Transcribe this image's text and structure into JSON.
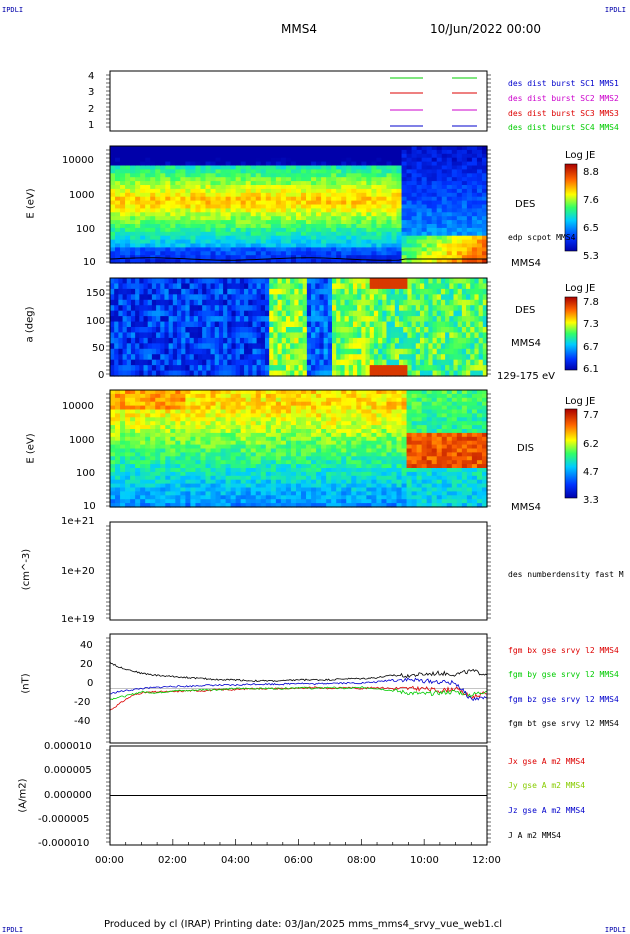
{
  "corners": {
    "tl": "IPDLI",
    "tr": "IPDLI",
    "bl": "IPDLI",
    "br": "IPDLI"
  },
  "header": {
    "spacecraft": "MMS4",
    "date": "10/Jun/2022 00:00"
  },
  "footer": {
    "text": "Produced by cl (IRAP)   Printing date: 03/Jan/2025   mms_mms4_srvy_vue_web1.cl"
  },
  "colors": {
    "mms1": "#0000cc",
    "mms2": "#cc00cc",
    "mms3": "#dd0000",
    "mms4": "#00cc00",
    "bx": "#dd0000",
    "by": "#00cc00",
    "bz": "#0000cc",
    "bt": "#000000"
  },
  "chart_data": [
    {
      "type": "line",
      "name": "burst-availability",
      "yticks": [
        "1",
        "2",
        "3",
        "4"
      ],
      "legend": [
        {
          "label": "des dist burst SC1 MMS1",
          "color": "#0000cc"
        },
        {
          "label": "des dist burst SC2 MMS2",
          "color": "#cc00cc"
        },
        {
          "label": "des dist burst SC3 MMS3",
          "color": "#dd0000"
        },
        {
          "label": "des dist burst SC4 MMS4",
          "color": "#00cc00"
        }
      ]
    },
    {
      "type": "heatmap",
      "name": "des-energy-spectrogram",
      "ylabel": "E (eV)",
      "yscale": "log",
      "yticks": [
        "10000",
        "1000",
        "100",
        "10"
      ],
      "right_label": "DES",
      "overlay_label": "edp scpot MMS4",
      "spacecraft_label": "MMS4",
      "colorbar": {
        "title": "Log JE",
        "ticks": [
          "8.8",
          "7.6",
          "6.5",
          "5.3"
        ]
      }
    },
    {
      "type": "heatmap",
      "name": "des-pitch-angle",
      "ylabel": "a (deg)",
      "yticks": [
        "150",
        "100",
        "50",
        "0"
      ],
      "right_label": "DES",
      "spacecraft_label": "MMS4",
      "energy_label": "129-175 eV",
      "colorbar": {
        "title": "Log JE",
        "ticks": [
          "7.8",
          "7.3",
          "6.7",
          "6.1"
        ]
      }
    },
    {
      "type": "heatmap",
      "name": "dis-energy-spectrogram",
      "ylabel": "E (eV)",
      "yscale": "log",
      "yticks": [
        "10000",
        "1000",
        "100",
        "10"
      ],
      "right_label": "DIS",
      "spacecraft_label": "MMS4",
      "colorbar": {
        "title": "Log JE",
        "ticks": [
          "7.7",
          "6.2",
          "4.7",
          "3.3"
        ]
      }
    },
    {
      "type": "line",
      "name": "density",
      "ylabel": "(cm^-3)",
      "yscale": "log",
      "yticks": [
        "1e+21",
        "1e+20",
        "1e+19"
      ],
      "legend": [
        {
          "label": "des numberdensity fast M",
          "color": "#000000"
        }
      ]
    },
    {
      "type": "line",
      "name": "magnetic-field",
      "ylabel": "(nT)",
      "yticks": [
        "40",
        "20",
        "0",
        "-20",
        "-40"
      ],
      "ylim": [
        -50,
        50
      ],
      "x_hours": [
        0,
        0.25,
        0.5,
        0.75,
        1,
        1.5,
        2,
        2.5,
        3,
        3.5,
        4,
        4.5,
        5,
        5.5,
        6,
        6.5,
        7,
        7.5,
        8,
        8.5,
        9,
        9.5,
        10,
        10.5,
        11,
        11.5,
        12
      ],
      "series": [
        {
          "name": "fgm bx gse srvy l2 MMS4",
          "color": "#dd0000",
          "values": [
            -20,
            -15,
            -10,
            -6,
            -4,
            -3,
            -3,
            -2,
            -2,
            -1,
            -1,
            0,
            0,
            0,
            0,
            1,
            0,
            1,
            0,
            1,
            0,
            0,
            0,
            -2,
            0,
            -8,
            -4
          ]
        },
        {
          "name": "fgm by gse srvy l2 MMS4",
          "color": "#00cc00",
          "values": [
            -10,
            -8,
            -7,
            -5,
            -3,
            -4,
            -2,
            -2,
            -1,
            -1,
            0,
            0,
            0,
            0,
            1,
            0,
            1,
            0,
            1,
            0,
            -2,
            -4,
            -5,
            -4,
            -3,
            -6,
            -2
          ]
        },
        {
          "name": "fgm bz gse srvy l2 MMS4",
          "color": "#0000cc",
          "values": [
            -5,
            -3,
            -2,
            -1,
            0,
            1,
            2,
            2,
            3,
            3,
            3,
            4,
            4,
            4,
            5,
            4,
            5,
            5,
            5,
            6,
            8,
            8,
            7,
            6,
            5,
            -10,
            -8
          ]
        },
        {
          "name": "fgm bt gse srvy l2 MMS4",
          "color": "#000000",
          "values": [
            24,
            20,
            18,
            16,
            14,
            12,
            11,
            10,
            9,
            8,
            8,
            7,
            7,
            7,
            8,
            8,
            8,
            9,
            9,
            10,
            12,
            12,
            13,
            14,
            13,
            16,
            13
          ]
        }
      ]
    },
    {
      "type": "line",
      "name": "current-density",
      "ylabel": "(A/m2)",
      "yticks": [
        "0.000010",
        "0.000005",
        "0.000000",
        "-0.000005",
        "-0.000010"
      ],
      "ylim": [
        -1e-05,
        1e-05
      ],
      "legend": [
        {
          "label": "Jx gse A m2 MMS4",
          "color": "#dd0000"
        },
        {
          "label": "Jy gse A m2 MMS4",
          "color": "#88cc00"
        },
        {
          "label": "Jz gse A m2 MMS4",
          "color": "#0000cc"
        },
        {
          "label": "J A m2 MMS4",
          "color": "#000000"
        }
      ],
      "xticks": [
        "00:00",
        "02:00",
        "04:00",
        "06:00",
        "08:00",
        "10:00",
        "12:00"
      ]
    }
  ]
}
